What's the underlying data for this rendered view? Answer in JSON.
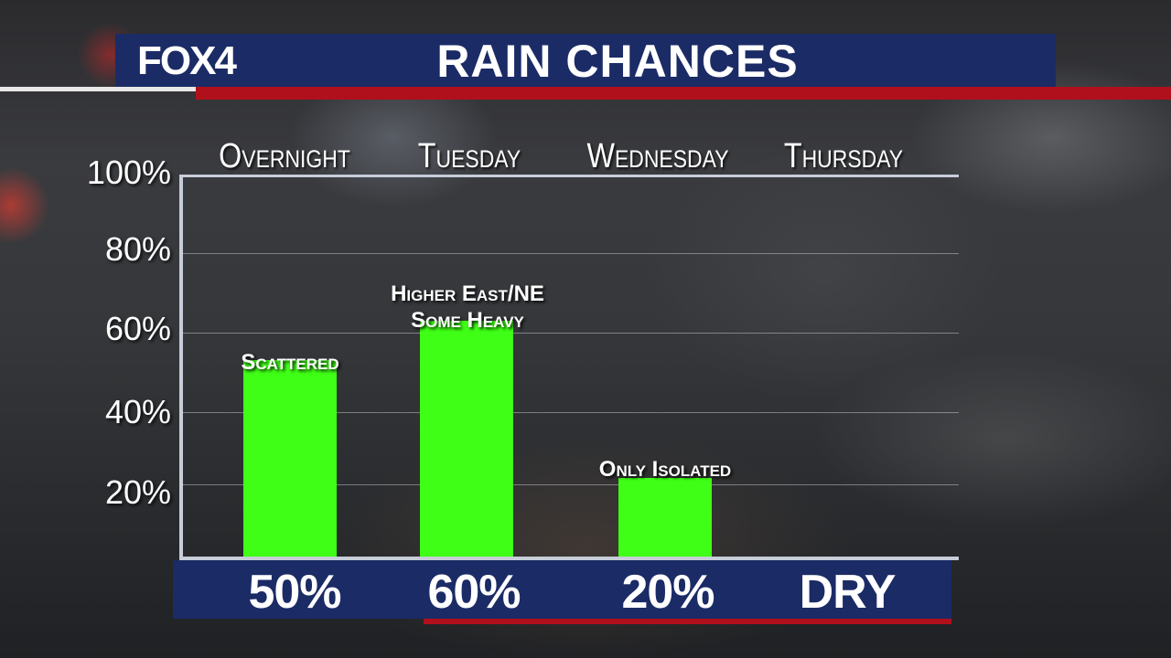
{
  "header": {
    "logo": "FOX4",
    "title": "RAIN CHANCES"
  },
  "colors": {
    "bar": "#3fff16",
    "banner": "#1b2b66",
    "accent_red": "#b0101c"
  },
  "chart_data": {
    "type": "bar",
    "categories": [
      "Overnight",
      "Tuesday",
      "Wednesday",
      "Thursday"
    ],
    "values": [
      50,
      60,
      20,
      0
    ],
    "value_labels": [
      "50%",
      "60%",
      "20%",
      "DRY"
    ],
    "annotations": [
      "Scattered",
      "Higher East/NE\nSome Heavy",
      "Only Isolated",
      ""
    ],
    "title": "RAIN CHANCES",
    "ylim": [
      0,
      100
    ],
    "yticks": [
      "20%",
      "40%",
      "60%",
      "80%",
      "100%"
    ],
    "grid": true
  }
}
